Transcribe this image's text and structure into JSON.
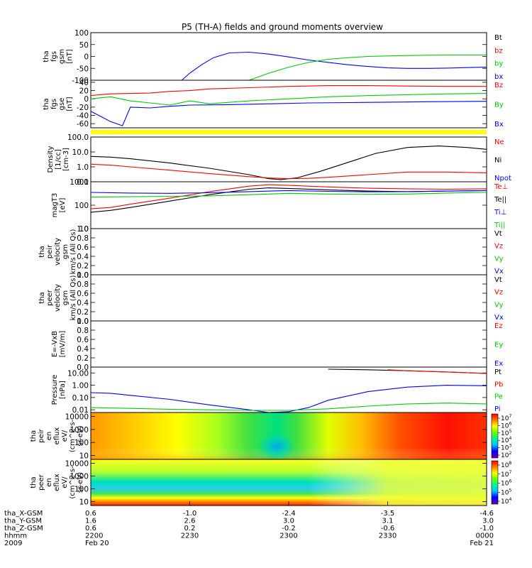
{
  "chart_data": {
    "type": "line",
    "title": "P5 (TH-A) fields and ground moments overview",
    "x_axis": {
      "rows": [
        {
          "name": "tha_X-GSM",
          "values": [
            "0.6",
            "-1.0",
            "-2.4",
            "-3.5",
            "-4.6"
          ]
        },
        {
          "name": "tha_Y-GSM",
          "values": [
            "1.6",
            "2.6",
            "3.0",
            "3.1",
            "3.0"
          ]
        },
        {
          "name": "tha_Z-GSM",
          "values": [
            "0.6",
            "0.2",
            "-0.2",
            "-0.6",
            "-1.0"
          ]
        },
        {
          "name": "hhmm",
          "values": [
            "2200",
            "2230",
            "2300",
            "2330",
            "0000"
          ]
        },
        {
          "name": "2009",
          "values": [
            "Feb 20",
            "",
            "",
            "",
            "Feb 21"
          ]
        }
      ]
    },
    "panels": [
      {
        "id": "fgs_gsm",
        "ylabel": [
          "tha",
          "fgs",
          "gsm",
          "[nT]"
        ],
        "scale": "linear",
        "ylim": [
          -100,
          100
        ],
        "ticks": [
          "100",
          "50",
          "0",
          "-50",
          "-100"
        ],
        "tick_values": [
          100,
          50,
          0,
          -50,
          -100
        ],
        "legend": [
          {
            "label": "Bt",
            "color": "#000000"
          },
          {
            "label": "bz",
            "color": "#ff0000"
          },
          {
            "label": "by",
            "color": "#00cc00"
          },
          {
            "label": "bx",
            "color": "#0000ff"
          }
        ],
        "series": [
          {
            "color": "#0000ff",
            "x": [
              0.23,
              0.25,
              0.28,
              0.31,
              0.35,
              0.4,
              0.45,
              0.5,
              0.55,
              0.6,
              0.65,
              0.7,
              0.75,
              0.8,
              0.85,
              0.9,
              0.95,
              1.0
            ],
            "y": [
              -100,
              -70,
              -35,
              -5,
              15,
              18,
              10,
              -2,
              -15,
              -25,
              -35,
              -42,
              -48,
              -50,
              -50,
              -49,
              -47,
              -45
            ]
          },
          {
            "color": "#00cc00",
            "x": [
              0.4,
              0.45,
              0.5,
              0.55,
              0.6,
              0.65,
              0.7,
              0.75,
              0.8,
              0.85,
              0.9,
              0.95,
              1.0
            ],
            "y": [
              -100,
              -70,
              -45,
              -25,
              -12,
              -5,
              0,
              2,
              4,
              5,
              6,
              6,
              6
            ]
          }
        ]
      },
      {
        "id": "fgs_gse",
        "ylabel": [
          "tha",
          "fgs",
          "gse",
          "[nT]"
        ],
        "scale": "linear",
        "ylim": [
          -70,
          45
        ],
        "ticks": [
          "40",
          "20",
          "0",
          "-20",
          "-40",
          "-60"
        ],
        "tick_values": [
          40,
          20,
          0,
          -20,
          -40,
          -60
        ],
        "legend": [
          {
            "label": "Bz",
            "color": "#ff0000"
          },
          {
            "label": "By",
            "color": "#00cc00"
          },
          {
            "label": "Bx",
            "color": "#0000ff"
          }
        ],
        "series": [
          {
            "color": "#ff0000",
            "x": [
              0.0,
              0.05,
              0.1,
              0.15,
              0.2,
              0.25,
              0.3,
              0.4,
              0.5,
              0.6,
              0.7,
              0.8,
              0.9,
              1.0
            ],
            "y": [
              8,
              12,
              13,
              14,
              18,
              20,
              24,
              27,
              30,
              32,
              32,
              31,
              30,
              30
            ]
          },
          {
            "color": "#00cc00",
            "x": [
              0.0,
              0.05,
              0.1,
              0.15,
              0.2,
              0.25,
              0.3,
              0.4,
              0.5,
              0.6,
              0.7,
              0.8,
              0.9,
              1.0
            ],
            "y": [
              0,
              5,
              -5,
              -10,
              -15,
              -5,
              -12,
              -5,
              0,
              5,
              8,
              10,
              12,
              13
            ]
          },
          {
            "color": "#0000ff",
            "x": [
              0.0,
              0.03,
              0.05,
              0.08,
              0.1,
              0.15,
              0.2,
              0.25,
              0.35,
              0.45,
              0.55,
              0.65,
              0.75,
              0.85,
              1.0
            ],
            "y": [
              -30,
              -45,
              -55,
              -65,
              -20,
              -22,
              -18,
              -15,
              -14,
              -12,
              -10,
              -9,
              -8,
              -7,
              -6
            ]
          }
        ]
      },
      {
        "id": "flag_bar",
        "ylabel": [],
        "bar_color": "#ffff00"
      },
      {
        "id": "density",
        "ylabel": [
          "Density",
          "[1/cc]",
          "[cm-3]"
        ],
        "scale": "log",
        "ylim": [
          0.1,
          100
        ],
        "ticks": [
          "100.0",
          "10.0",
          "1.0",
          "0.1"
        ],
        "tick_values": [
          100,
          10,
          1,
          0.1
        ],
        "legend": [
          {
            "label": "Ne",
            "color": "#ff0000"
          },
          {
            "label": "Ni",
            "color": "#000000"
          },
          {
            "label": "Npot",
            "color": "#0000ff"
          }
        ],
        "series": [
          {
            "color": "#000000",
            "x": [
              0.0,
              0.05,
              0.1,
              0.2,
              0.3,
              0.4,
              0.45,
              0.48,
              0.52,
              0.58,
              0.65,
              0.72,
              0.8,
              0.88,
              0.95,
              1.0
            ],
            "y": [
              5,
              4.5,
              3.5,
              1.8,
              0.8,
              0.3,
              0.16,
              0.14,
              0.18,
              0.5,
              2,
              8,
              20,
              25,
              20,
              15
            ]
          },
          {
            "color": "#ff0000",
            "x": [
              0.0,
              0.05,
              0.1,
              0.2,
              0.3,
              0.4,
              0.45,
              0.5,
              0.55,
              0.6,
              0.7,
              0.8,
              0.9,
              1.0
            ],
            "y": [
              1.5,
              1.3,
              1.0,
              0.6,
              0.35,
              0.22,
              0.18,
              0.16,
              0.17,
              0.2,
              0.3,
              0.45,
              0.45,
              0.4
            ]
          }
        ]
      },
      {
        "id": "temperature",
        "ylabel": [
          "magT3",
          "[eV]"
        ],
        "scale": "log",
        "ylim": [
          10,
          1000
        ],
        "ticks": [
          "1000",
          "100",
          "10"
        ],
        "tick_values": [
          1000,
          100,
          10
        ],
        "legend": [
          {
            "label": "Te⊥",
            "color": "#ff0000"
          },
          {
            "label": "Te||",
            "color": "#000000"
          },
          {
            "label": "Ti⊥",
            "color": "#0000ff"
          },
          {
            "label": "Ti||",
            "color": "#00cc00"
          }
        ],
        "series": [
          {
            "color": "#ff0000",
            "x": [
              0.0,
              0.05,
              0.1,
              0.2,
              0.3,
              0.4,
              0.45,
              0.5,
              0.6,
              0.7,
              0.8,
              0.9,
              1.0
            ],
            "y": [
              70,
              80,
              110,
              200,
              380,
              650,
              750,
              700,
              600,
              530,
              500,
              480,
              500
            ]
          },
          {
            "color": "#000000",
            "x": [
              0.0,
              0.05,
              0.1,
              0.2,
              0.3,
              0.4,
              0.45,
              0.5,
              0.6,
              0.7,
              0.8,
              0.9,
              1.0
            ],
            "y": [
              50,
              60,
              80,
              150,
              280,
              480,
              550,
              520,
              450,
              400,
              380,
              400,
              420
            ]
          },
          {
            "color": "#0000ff",
            "x": [
              0.0,
              0.1,
              0.2,
              0.3,
              0.4,
              0.5,
              0.6,
              0.7,
              0.8,
              0.9,
              1.0
            ],
            "y": [
              350,
              330,
              320,
              340,
              380,
              420,
              390,
              370,
              380,
              400,
              420
            ]
          },
          {
            "color": "#00cc00",
            "x": [
              0.0,
              0.1,
              0.2,
              0.3,
              0.4,
              0.5,
              0.6,
              0.7,
              0.8,
              0.9,
              1.0
            ],
            "y": [
              220,
              230,
              240,
              250,
              280,
              320,
              300,
              290,
              300,
              330,
              350
            ]
          }
        ]
      },
      {
        "id": "peir_velocity",
        "ylabel": [
          "tha",
          "peir",
          "velocity",
          "gsm",
          "km/s (All Qs)"
        ],
        "scale": "linear",
        "ylim": [
          0,
          1
        ],
        "ticks": [
          "1.0",
          "0.8",
          "0.6",
          "0.4",
          "0.2",
          "0.0"
        ],
        "tick_values": [
          1.0,
          0.8,
          0.6,
          0.4,
          0.2,
          0.0
        ],
        "legend": [
          {
            "label": "Vt",
            "color": "#000000"
          },
          {
            "label": "Vz",
            "color": "#ff0000"
          },
          {
            "label": "Vy",
            "color": "#00cc00"
          },
          {
            "label": "Vx",
            "color": "#0000ff"
          }
        ],
        "series": []
      },
      {
        "id": "peer_velocity",
        "ylabel": [
          "tha",
          "peer",
          "velocity",
          "gsm",
          "km/s (All Qs)"
        ],
        "scale": "linear",
        "ylim": [
          0,
          1
        ],
        "ticks": [
          "1.0",
          "0.8",
          "0.6",
          "0.4",
          "0.2",
          "0.0"
        ],
        "tick_values": [
          1.0,
          0.8,
          0.6,
          0.4,
          0.2,
          0.0
        ],
        "legend": [
          {
            "label": "Vt",
            "color": "#000000"
          },
          {
            "label": "Vz",
            "color": "#ff0000"
          },
          {
            "label": "Vy",
            "color": "#00cc00"
          },
          {
            "label": "Vx",
            "color": "#0000ff"
          }
        ],
        "series": []
      },
      {
        "id": "efield",
        "ylabel": [
          "E=-VxB",
          "[mV/m]"
        ],
        "scale": "linear",
        "ylim": [
          0,
          1
        ],
        "ticks": [
          "1.0",
          "0.8",
          "0.6",
          "0.4",
          "0.2",
          "0.0"
        ],
        "tick_values": [
          1.0,
          0.8,
          0.6,
          0.4,
          0.2,
          0.0
        ],
        "legend": [
          {
            "label": "Ez",
            "color": "#ff0000"
          },
          {
            "label": "Ey",
            "color": "#00cc00"
          },
          {
            "label": "Ex",
            "color": "#0000ff"
          }
        ],
        "series": []
      },
      {
        "id": "pressure",
        "ylabel": [
          "Pressure",
          "[nPa]"
        ],
        "scale": "log",
        "ylim": [
          0.006,
          30
        ],
        "ticks": [
          "10.00",
          "1.00",
          "0.10",
          "0.01"
        ],
        "tick_values": [
          10,
          1,
          0.1,
          0.01
        ],
        "legend": [
          {
            "label": "Pt",
            "color": "#000000"
          },
          {
            "label": "Pb",
            "color": "#ff0000"
          },
          {
            "label": "Pe",
            "color": "#00cc00"
          },
          {
            "label": "Pi",
            "color": "#0000ff"
          }
        ],
        "series": [
          {
            "color": "#000000",
            "x": [
              0.6,
              0.7,
              0.8,
              0.9,
              1.0
            ],
            "y": [
              20,
              18,
              15,
              12,
              9
            ]
          },
          {
            "color": "#ff0000",
            "x": [
              0.75,
              0.8,
              0.9,
              1.0
            ],
            "y": [
              18,
              15,
              12,
              9
            ]
          },
          {
            "color": "#0000ff",
            "x": [
              0.0,
              0.05,
              0.1,
              0.2,
              0.3,
              0.4,
              0.45,
              0.5,
              0.55,
              0.6,
              0.7,
              0.8,
              0.9,
              1.0
            ],
            "y": [
              0.25,
              0.22,
              0.15,
              0.07,
              0.025,
              0.01,
              0.006,
              0.007,
              0.015,
              0.06,
              0.3,
              0.7,
              1.0,
              0.9
            ]
          },
          {
            "color": "#00cc00",
            "x": [
              0.0,
              0.1,
              0.2,
              0.3,
              0.4,
              0.5,
              0.6,
              0.7,
              0.8,
              0.9,
              1.0
            ],
            "y": [
              0.015,
              0.013,
              0.011,
              0.01,
              0.009,
              0.009,
              0.012,
              0.02,
              0.03,
              0.035,
              0.03
            ]
          }
        ]
      },
      {
        "id": "peir_eflux",
        "ylabel": [
          "tha",
          "peir",
          "en",
          "eflux",
          "eV/",
          "(cm^2-s-",
          "sr-eV)"
        ],
        "scale": "log",
        "ylim": [
          5,
          20000
        ],
        "ticks": [
          "10000",
          "1000",
          "100",
          "10"
        ],
        "tick_values": [
          10000,
          1000,
          100,
          10
        ],
        "spectrogram": true,
        "colorbar_ticks": [
          "10^7",
          "10^6",
          "10^5",
          "10^4",
          "10^3",
          "10^2"
        ]
      },
      {
        "id": "peer_eflux",
        "ylabel": [
          "tha",
          "peer",
          "en",
          "eflux",
          "eV/",
          "(cm^2-s-",
          "sr-eV)"
        ],
        "scale": "log",
        "ylim": [
          5,
          20000
        ],
        "ticks": [
          "10000",
          "1000",
          "100",
          "10"
        ],
        "tick_values": [
          10000,
          1000,
          100,
          10
        ],
        "spectrogram": true,
        "colorbar_ticks": [
          "10^8",
          "10^7",
          "10^6",
          "10^5",
          "10^4"
        ]
      }
    ]
  }
}
